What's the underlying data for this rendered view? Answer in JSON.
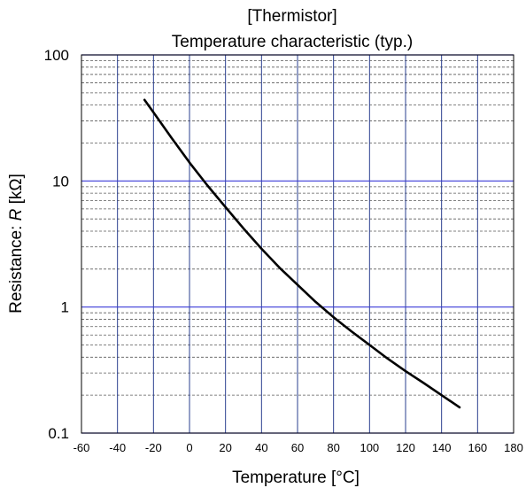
{
  "chart_data": {
    "type": "line",
    "title": "[Thermistor]",
    "subtitle": "Temperature characteristic (typ.)",
    "xlabel": "Temperature  [°C]",
    "ylabel_prefix": "Resistance: ",
    "ylabel_symbol": "R",
    "ylabel_unit": " [kΩ]",
    "xlim": [
      -60,
      180
    ],
    "ylim": [
      0.1,
      100
    ],
    "yscale": "log",
    "grid": true,
    "x_ticks": [
      -60,
      -40,
      -20,
      0,
      20,
      40,
      60,
      80,
      100,
      120,
      140,
      160,
      180
    ],
    "x_tick_labels": [
      "-60",
      "-40",
      "-20",
      "0",
      "20",
      "40",
      "60",
      "80",
      "100",
      "120",
      "140",
      "160",
      "180"
    ],
    "y_ticks": [
      0.1,
      1,
      10,
      100
    ],
    "y_tick_labels": [
      "0.1",
      "1",
      "10",
      "100"
    ],
    "series": [
      {
        "color": "#000000",
        "x": [
          -25,
          -20,
          -10,
          0,
          10,
          20,
          25,
          30,
          40,
          50,
          60,
          70,
          80,
          90,
          100,
          110,
          120,
          130,
          140,
          150
        ],
        "y": [
          44,
          35,
          22,
          14,
          9.2,
          6.2,
          5.1,
          4.2,
          2.9,
          2.05,
          1.5,
          1.1,
          0.83,
          0.64,
          0.5,
          0.39,
          0.31,
          0.25,
          0.2,
          0.16
        ]
      }
    ],
    "colors": {
      "grid_major": "#2a3f8f",
      "grid_minor": "#5a5a5a",
      "major_decade": "#3a3ad8",
      "line": "#000000"
    }
  }
}
